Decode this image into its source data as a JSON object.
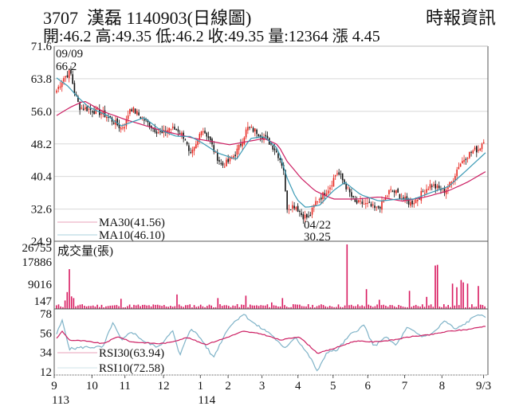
{
  "header": {
    "title": "3707  漢磊 1140903(日線圖)",
    "source": "時報資訊",
    "ohlc": "開:46.2 高:49.35 低:46.2 收:49.35 量:12364 漲 4.45"
  },
  "colors": {
    "up": "#e8261e",
    "down": "#111111",
    "ma30": "#cc1f63",
    "ma10": "#3a9ab5",
    "volume": "#d81b60",
    "rsi30": "#cc1f63",
    "rsi10": "#7fb3c8",
    "grid": "#d8d8d8"
  },
  "chart_data": [
    {
      "type": "candlestick",
      "title": "3707 漢磊 1140903(日線圖)",
      "ylim": [
        24.9,
        71.6
      ],
      "yticks": [
        "71.6",
        "63.8",
        "56.0",
        "48.2",
        "40.4",
        "32.6",
        "24.9"
      ],
      "grid": true,
      "annotations": [
        {
          "label_date": "09/09",
          "label_value": "66.2",
          "kind": "high"
        },
        {
          "label_date": "04/22",
          "label_value": "30.25",
          "kind": "low"
        }
      ],
      "legend": [
        {
          "name": "MA30",
          "value": "MA30(41.56)"
        },
        {
          "name": "MA10",
          "value": "MA10(46.10)"
        }
      ],
      "close_profile": [
        [
          0,
          61
        ],
        [
          3,
          64
        ],
        [
          6,
          65.5
        ],
        [
          8,
          60
        ],
        [
          10,
          57
        ],
        [
          14,
          56.5
        ],
        [
          20,
          55.5
        ],
        [
          25,
          53.5
        ],
        [
          28,
          52
        ],
        [
          30,
          53
        ],
        [
          32,
          57
        ],
        [
          35,
          55.5
        ],
        [
          38,
          54
        ],
        [
          42,
          52
        ],
        [
          46,
          50.5
        ],
        [
          49,
          52
        ],
        [
          53,
          51.5
        ],
        [
          56,
          49.5
        ],
        [
          58,
          45
        ],
        [
          61,
          48
        ],
        [
          63,
          52
        ],
        [
          66,
          50
        ],
        [
          69,
          46
        ],
        [
          72,
          43
        ],
        [
          75,
          44
        ],
        [
          78,
          46
        ],
        [
          80,
          48
        ],
        [
          83,
          52
        ],
        [
          86,
          51.5
        ],
        [
          89,
          50.5
        ],
        [
          92,
          49
        ],
        [
          95,
          47
        ],
        [
          97,
          45
        ],
        [
          99,
          42
        ],
        [
          100,
          33
        ],
        [
          104,
          33.5
        ],
        [
          107,
          31
        ],
        [
          110,
          30.5
        ],
        [
          113,
          34.5
        ],
        [
          116,
          36
        ],
        [
          119,
          38
        ],
        [
          122,
          41.5
        ],
        [
          124,
          40
        ],
        [
          127,
          37
        ],
        [
          130,
          34
        ],
        [
          133,
          34
        ],
        [
          136,
          33.5
        ],
        [
          139,
          32.5
        ],
        [
          142,
          34
        ],
        [
          145,
          37
        ],
        [
          148,
          36.5
        ],
        [
          151,
          35
        ],
        [
          154,
          34
        ],
        [
          157,
          35
        ],
        [
          160,
          37
        ],
        [
          163,
          38.5
        ],
        [
          166,
          37.5
        ],
        [
          169,
          37
        ],
        [
          172,
          39
        ],
        [
          175,
          43
        ],
        [
          178,
          45
        ],
        [
          181,
          46.5
        ],
        [
          184,
          47
        ],
        [
          186,
          49.35
        ]
      ],
      "ma30_profile": [
        [
          0,
          55
        ],
        [
          6,
          57
        ],
        [
          12,
          58.5
        ],
        [
          20,
          56
        ],
        [
          30,
          54
        ],
        [
          45,
          51.5
        ],
        [
          60,
          49.5
        ],
        [
          75,
          48
        ],
        [
          90,
          49.5
        ],
        [
          96,
          48
        ],
        [
          100,
          44
        ],
        [
          106,
          40
        ],
        [
          112,
          37
        ],
        [
          120,
          35
        ],
        [
          130,
          35
        ],
        [
          140,
          35.5
        ],
        [
          150,
          34.5
        ],
        [
          160,
          35.5
        ],
        [
          170,
          37
        ],
        [
          178,
          39
        ],
        [
          186,
          41.56
        ]
      ],
      "ma10_profile": [
        [
          0,
          64
        ],
        [
          5,
          62
        ],
        [
          9,
          59.5
        ],
        [
          14,
          57
        ],
        [
          22,
          55
        ],
        [
          28,
          52.5
        ],
        [
          33,
          53.5
        ],
        [
          38,
          54.5
        ],
        [
          45,
          51.5
        ],
        [
          52,
          50
        ],
        [
          58,
          50
        ],
        [
          63,
          48.5
        ],
        [
          70,
          46
        ],
        [
          78,
          44.5
        ],
        [
          84,
          49.5
        ],
        [
          90,
          50
        ],
        [
          96,
          47
        ],
        [
          100,
          40
        ],
        [
          104,
          35
        ],
        [
          108,
          33
        ],
        [
          114,
          33.5
        ],
        [
          120,
          37
        ],
        [
          125,
          39
        ],
        [
          132,
          36
        ],
        [
          140,
          34.5
        ],
        [
          148,
          35
        ],
        [
          155,
          35
        ],
        [
          162,
          36.5
        ],
        [
          170,
          38
        ],
        [
          178,
          42
        ],
        [
          186,
          46.1
        ]
      ]
    },
    {
      "type": "bar",
      "title": "成交量(張)",
      "yticks": [
        "26755",
        "17886",
        "9016",
        "147"
      ],
      "ylim": [
        0,
        26755
      ],
      "spikes": [
        [
          4,
          3500
        ],
        [
          5,
          7000
        ],
        [
          6,
          16500
        ],
        [
          7,
          5200
        ],
        [
          8,
          4500
        ],
        [
          30,
          4200
        ],
        [
          56,
          6000
        ],
        [
          75,
          4500
        ],
        [
          88,
          5500
        ],
        [
          100,
          2700
        ],
        [
          105,
          4500
        ],
        [
          135,
          26755
        ],
        [
          144,
          8200
        ],
        [
          150,
          3800
        ],
        [
          164,
          7500
        ],
        [
          172,
          5000
        ],
        [
          176,
          18000
        ],
        [
          177,
          18300
        ],
        [
          184,
          10500
        ],
        [
          186,
          9000
        ],
        [
          188,
          12000
        ],
        [
          189,
          11000
        ],
        [
          191,
          10500
        ],
        [
          196,
          9500
        ]
      ]
    },
    {
      "type": "line",
      "title": "RSI",
      "yticks": [
        "78",
        "56",
        "34",
        "12"
      ],
      "ylim": [
        12,
        78
      ],
      "legend": [
        {
          "name": "RSI30",
          "value": "RSI30(63.94)"
        },
        {
          "name": "RSI10",
          "value": "RSI10(72.58)"
        }
      ],
      "rsi30_profile": [
        [
          0,
          50
        ],
        [
          3,
          58
        ],
        [
          7,
          48
        ],
        [
          15,
          47
        ],
        [
          25,
          44
        ],
        [
          33,
          52
        ],
        [
          40,
          46
        ],
        [
          55,
          44
        ],
        [
          60,
          45
        ],
        [
          70,
          51
        ],
        [
          80,
          43
        ],
        [
          90,
          50
        ],
        [
          100,
          58
        ],
        [
          110,
          55
        ],
        [
          120,
          48
        ],
        [
          130,
          52
        ],
        [
          140,
          33
        ],
        [
          148,
          38
        ],
        [
          160,
          47
        ],
        [
          170,
          46
        ],
        [
          180,
          48
        ],
        [
          190,
          52
        ],
        [
          200,
          54
        ],
        [
          210,
          58
        ],
        [
          220,
          60
        ],
        [
          230,
          63.94
        ]
      ],
      "rsi10_profile": [
        [
          0,
          55
        ],
        [
          3,
          70
        ],
        [
          7,
          38
        ],
        [
          15,
          40
        ],
        [
          25,
          40
        ],
        [
          30,
          68
        ],
        [
          35,
          47
        ],
        [
          40,
          58
        ],
        [
          48,
          45
        ],
        [
          55,
          40
        ],
        [
          62,
          60
        ],
        [
          66,
          30
        ],
        [
          72,
          62
        ],
        [
          78,
          48
        ],
        [
          84,
          28
        ],
        [
          92,
          62
        ],
        [
          100,
          78
        ],
        [
          107,
          65
        ],
        [
          115,
          55
        ],
        [
          122,
          38
        ],
        [
          128,
          52
        ],
        [
          136,
          28
        ],
        [
          140,
          12
        ],
        [
          145,
          35
        ],
        [
          150,
          36
        ],
        [
          158,
          55
        ],
        [
          165,
          65
        ],
        [
          170,
          40
        ],
        [
          176,
          52
        ],
        [
          182,
          42
        ],
        [
          188,
          62
        ],
        [
          196,
          52
        ],
        [
          202,
          56
        ],
        [
          208,
          70
        ],
        [
          214,
          60
        ],
        [
          220,
          68
        ],
        [
          226,
          78
        ],
        [
          230,
          72.58
        ]
      ]
    }
  ],
  "xaxis": {
    "labels": [
      {
        "text": "9",
        "pos": 0.0
      },
      {
        "text": "10",
        "pos": 0.087
      },
      {
        "text": "11",
        "pos": 0.163
      },
      {
        "text": "12",
        "pos": 0.252
      },
      {
        "text": "1",
        "pos": 0.337
      },
      {
        "text": "2",
        "pos": 0.401
      },
      {
        "text": "3",
        "pos": 0.479
      },
      {
        "text": "4",
        "pos": 0.562
      },
      {
        "text": "5",
        "pos": 0.643
      },
      {
        "text": "6",
        "pos": 0.723
      },
      {
        "text": "7",
        "pos": 0.808
      },
      {
        "text": "8",
        "pos": 0.894
      },
      {
        "text": "9/3",
        "pos": 0.99
      }
    ],
    "years": [
      {
        "text": "113",
        "pos": 0.0
      },
      {
        "text": "114",
        "pos": 0.337
      }
    ]
  }
}
